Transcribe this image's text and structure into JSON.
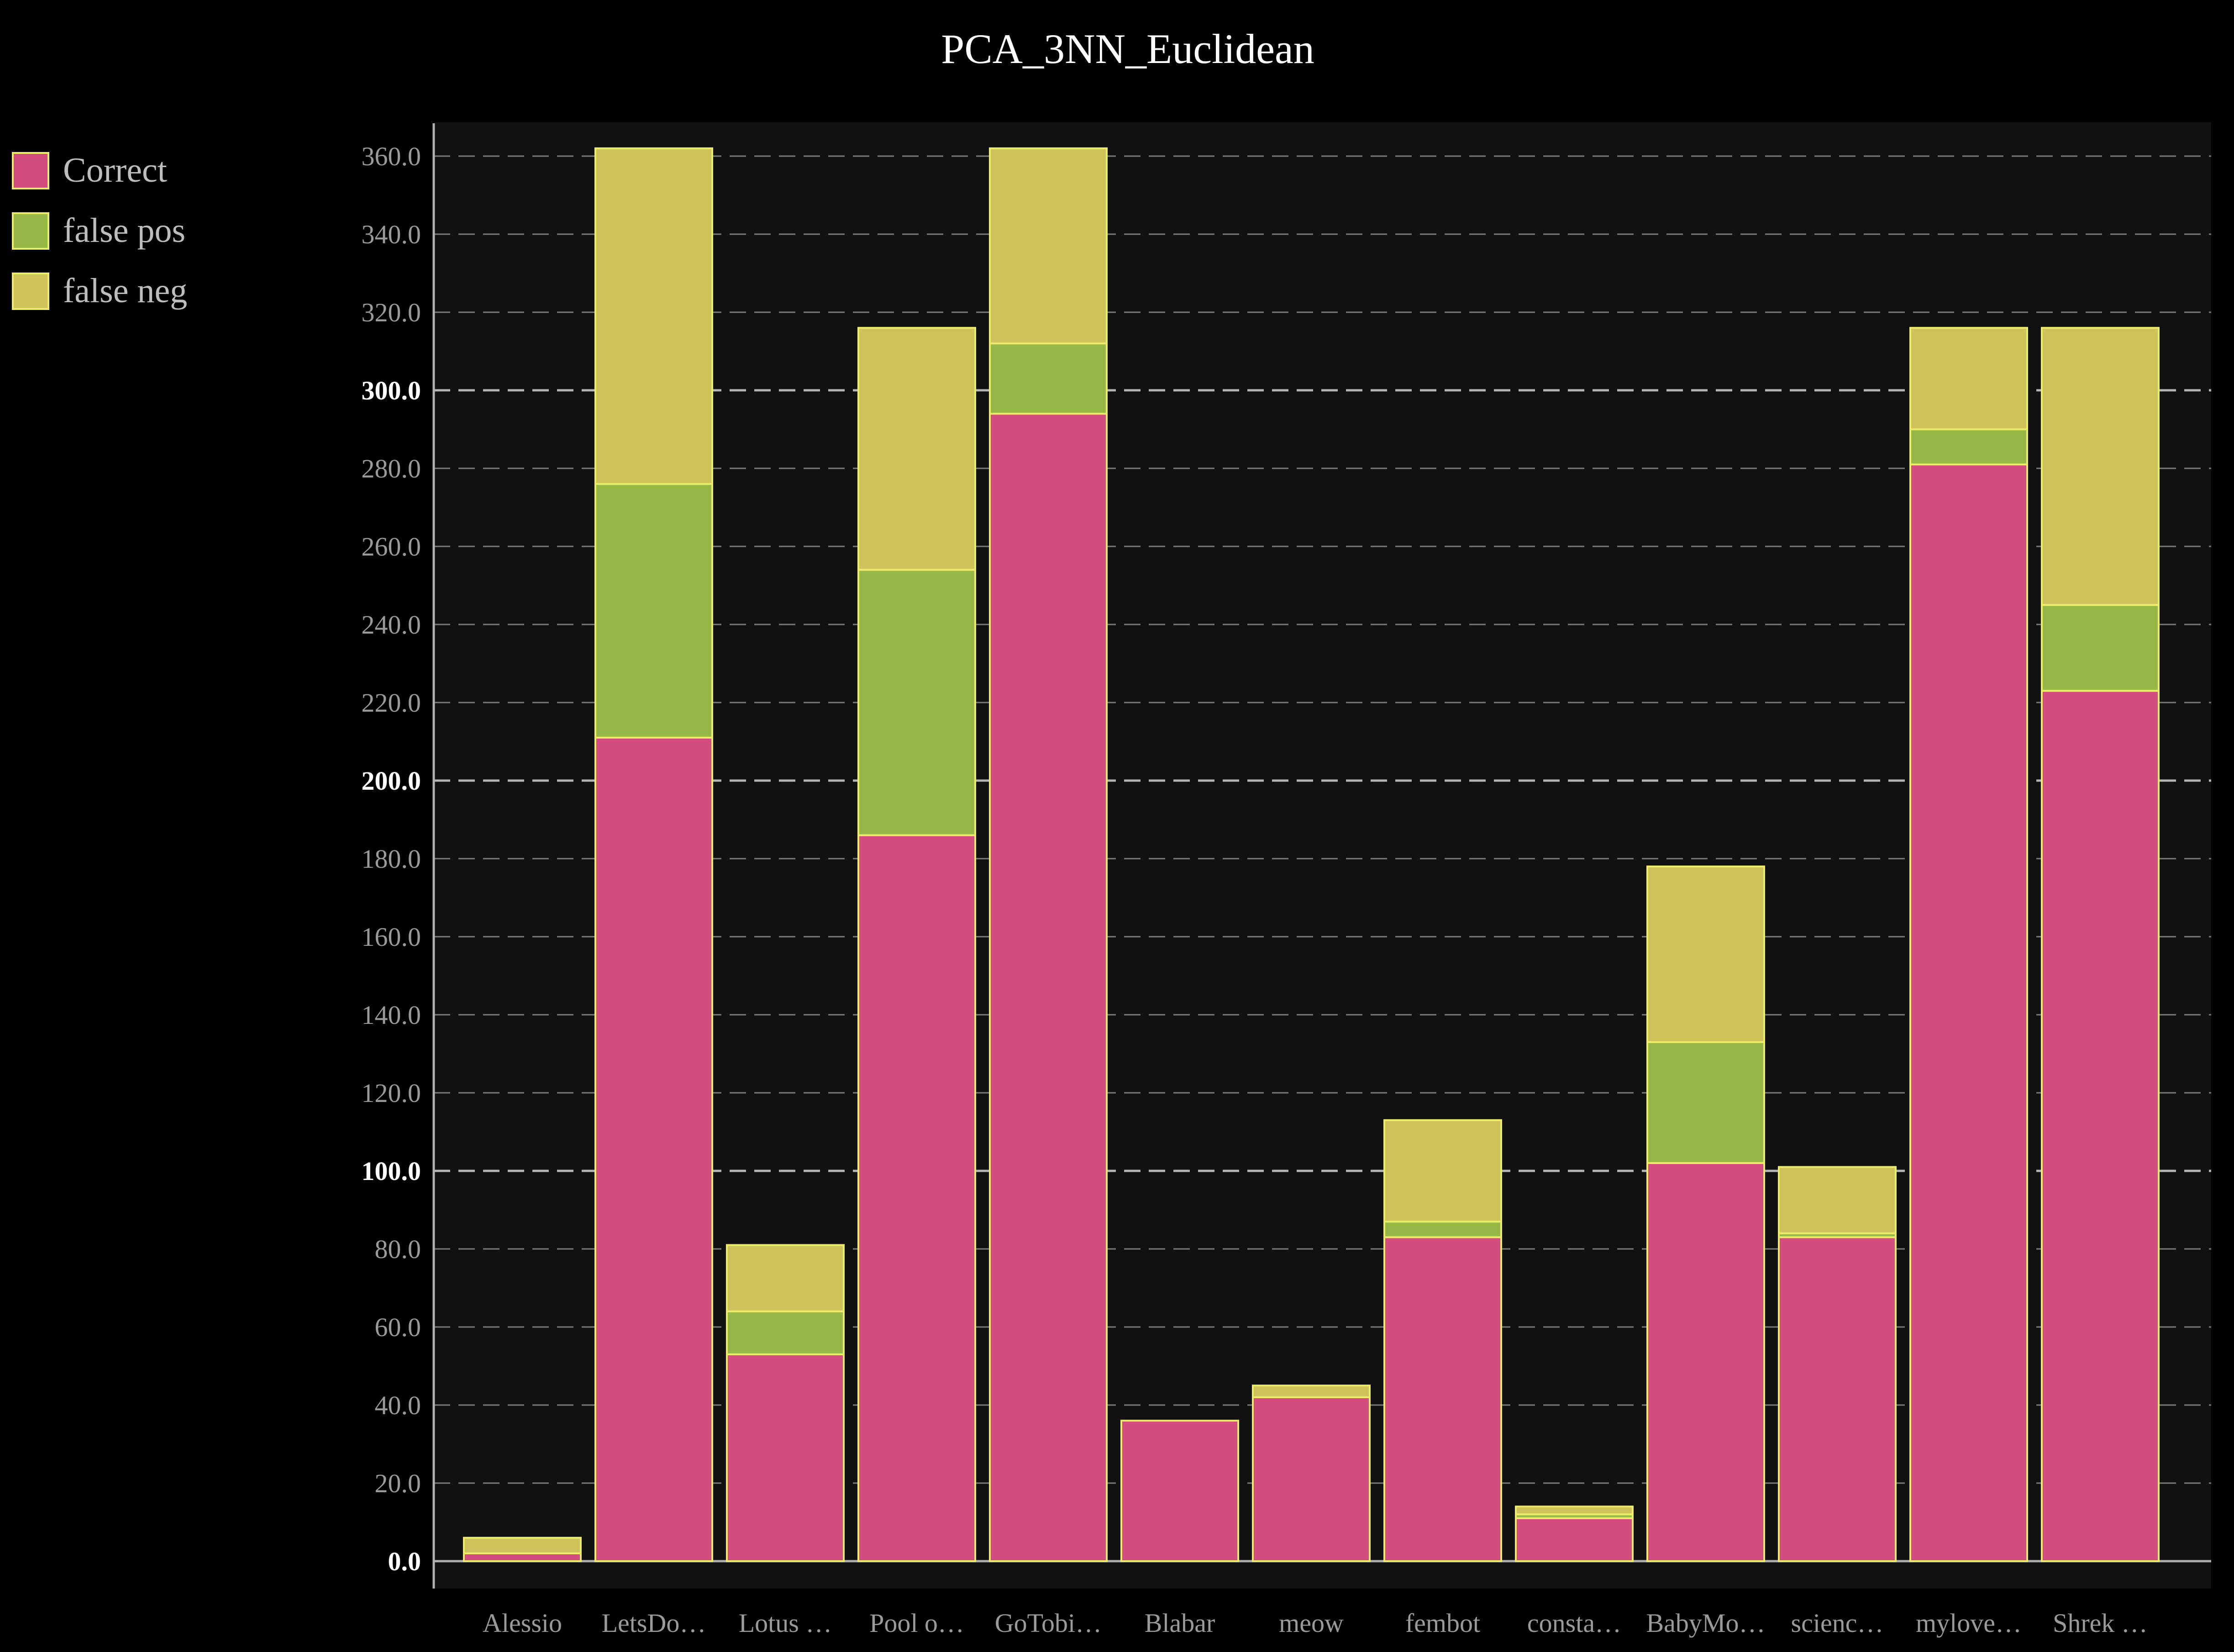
{
  "chart_data": {
    "type": "bar",
    "stacked": true,
    "title": "PCA_3NN_Euclidean",
    "xlabel": "",
    "ylabel": "",
    "ylim": [
      0,
      370
    ],
    "y_ticks": [
      "0.0",
      "20.0",
      "40.0",
      "60.0",
      "80.0",
      "100.0",
      "120.0",
      "140.0",
      "160.0",
      "180.0",
      "200.0",
      "220.0",
      "240.0",
      "260.0",
      "280.0",
      "300.0",
      "320.0",
      "340.0",
      "360.0"
    ],
    "categories": [
      "Alessio",
      "LetsDo…",
      "Lotus …",
      "Pool o…",
      "GoTobi…",
      "Blabar",
      "meow",
      "fembot",
      "consta…",
      "BabyMo…",
      "scienc…",
      "mylove…",
      "Shrek …"
    ],
    "series": [
      {
        "name": "Correct",
        "color": "#d34c7e",
        "values": [
          2,
          211,
          53,
          186,
          294,
          36,
          42,
          83,
          11,
          102,
          83,
          281,
          223
        ]
      },
      {
        "name": "false pos",
        "color": "#96b948",
        "values": [
          0,
          65,
          11,
          68,
          18,
          0,
          0,
          4,
          1,
          31,
          1,
          9,
          22
        ]
      },
      {
        "name": "false neg",
        "color": "#cfc35b",
        "values": [
          4,
          86,
          17,
          62,
          50,
          0,
          3,
          26,
          2,
          45,
          17,
          26,
          71
        ]
      }
    ],
    "legend": "top-left",
    "grid": true
  }
}
